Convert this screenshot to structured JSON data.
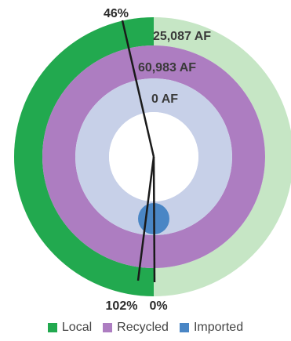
{
  "chart_data": {
    "type": "radial-bar",
    "rings": [
      {
        "name": "Local",
        "share_percent": 46,
        "volume_label": "25,087 AF",
        "start_percent_label": "46%",
        "end_percent_label": "102%",
        "color": "#22a94f",
        "track_color": "#c6e6c5"
      },
      {
        "name": "Recycled",
        "volume_label": "60,983 AF",
        "color": "#ad7dc1"
      },
      {
        "name": "Imported",
        "volume_label": "0 AF",
        "end_percent_label": "0%",
        "color": "#4a86c5",
        "track_color": "#c7d0e8"
      }
    ],
    "legend": {
      "placement": "bottom",
      "items": [
        {
          "label": "Local",
          "color": "#22a94f"
        },
        {
          "label": "Recycled",
          "color": "#ad7dc1"
        },
        {
          "label": "Imported",
          "color": "#4a86c5"
        }
      ]
    }
  }
}
